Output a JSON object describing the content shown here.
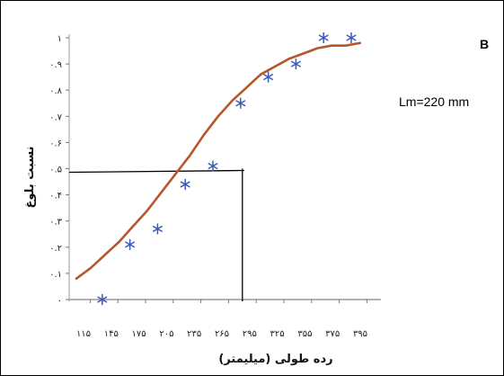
{
  "chart_data": {
    "type": "scatter",
    "xlabel": "رده طولی (میلیمتر)",
    "ylabel": "نسبت بلوغ",
    "x_tick_labels": [
      "۱۱۵",
      "۱۴۵",
      "۱۷۵",
      "۲۰۵",
      "۲۳۵",
      "۲۶۵",
      "۲۹۵",
      "۳۲۵",
      "۳۵۵",
      "۳۷۵",
      "۳۹۵"
    ],
    "y_tick_labels": [
      "۰",
      "۰.۱",
      "۰.۲",
      "۰.۳",
      "۰.۴",
      "۰.۵",
      "۰.۶",
      "۰.۷",
      "۰.۸",
      "۰.۹",
      "۱"
    ],
    "ylim": [
      0,
      1
    ],
    "grid": false,
    "series": [
      {
        "marker": "asterisk",
        "color": "#3b5bb5",
        "x": [
          "۱۱۵",
          "۱۴۵",
          "۱۷۵",
          "۲۰۵",
          "۲۳۵",
          "۲۶۵",
          "۲۹۵",
          "۳۲۵",
          "۳۵۵",
          "۳۷۵"
        ],
        "y": [
          0.0,
          0.21,
          0.27,
          0.44,
          0.51,
          0.75,
          0.85,
          0.9,
          1.0,
          1.0
        ]
      },
      {
        "name": "B",
        "type": "line",
        "color": "#b5572a",
        "x_at": [
          0,
          0.5,
          1,
          1.5,
          2,
          2.5,
          3,
          3.5,
          4,
          4.5,
          5,
          5.5,
          6,
          6.5,
          7,
          7.5,
          8,
          8.5,
          9,
          9.5,
          10
        ],
        "y": [
          0.08,
          0.12,
          0.17,
          0.22,
          0.28,
          0.34,
          0.41,
          0.48,
          0.55,
          0.63,
          0.7,
          0.76,
          0.81,
          0.86,
          0.89,
          0.92,
          0.94,
          0.96,
          0.97,
          0.97,
          0.98
        ]
      }
    ],
    "reference_lines": {
      "y": 0.5,
      "x": "۲۲۰"
    },
    "annotations": [
      {
        "text": "Lm=220 mm"
      }
    ]
  }
}
